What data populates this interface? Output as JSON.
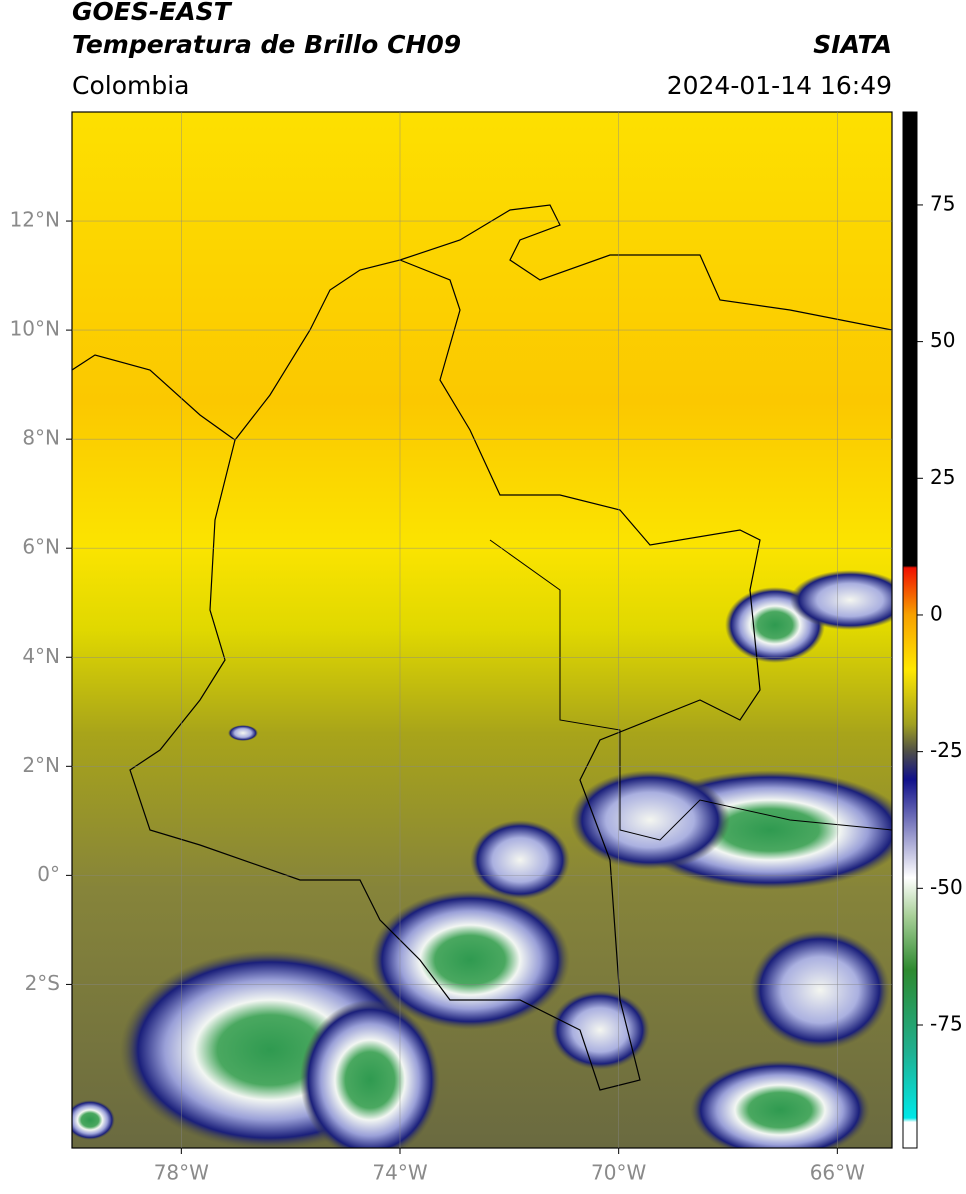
{
  "header": {
    "source": "GOES-EAST",
    "title": "Temperatura de Brillo CH09",
    "agency": "SIATA",
    "region": "Colombia",
    "timestamp": "2024-01-14 16:49"
  },
  "map": {
    "xlim": [
      -80,
      -65
    ],
    "ylim": [
      -5,
      14
    ],
    "xticks": [
      {
        "value": -78,
        "label": "78°W"
      },
      {
        "value": -74,
        "label": "74°W"
      },
      {
        "value": -70,
        "label": "70°W"
      },
      {
        "value": -66,
        "label": "66°W"
      }
    ],
    "yticks": [
      {
        "value": 12,
        "label": "12°N"
      },
      {
        "value": 10,
        "label": "10°N"
      },
      {
        "value": 8,
        "label": "8°N"
      },
      {
        "value": 6,
        "label": "6°N"
      },
      {
        "value": 4,
        "label": "4°N"
      },
      {
        "value": 2,
        "label": "2°N"
      },
      {
        "value": 0,
        "label": "0°"
      },
      {
        "value": -2,
        "label": "2°S"
      }
    ],
    "grid": true
  },
  "colorbar": {
    "lim": [
      -97.5,
      92
    ],
    "ticks": [
      75,
      50,
      25,
      0,
      -25,
      -50,
      -75
    ]
  }
}
